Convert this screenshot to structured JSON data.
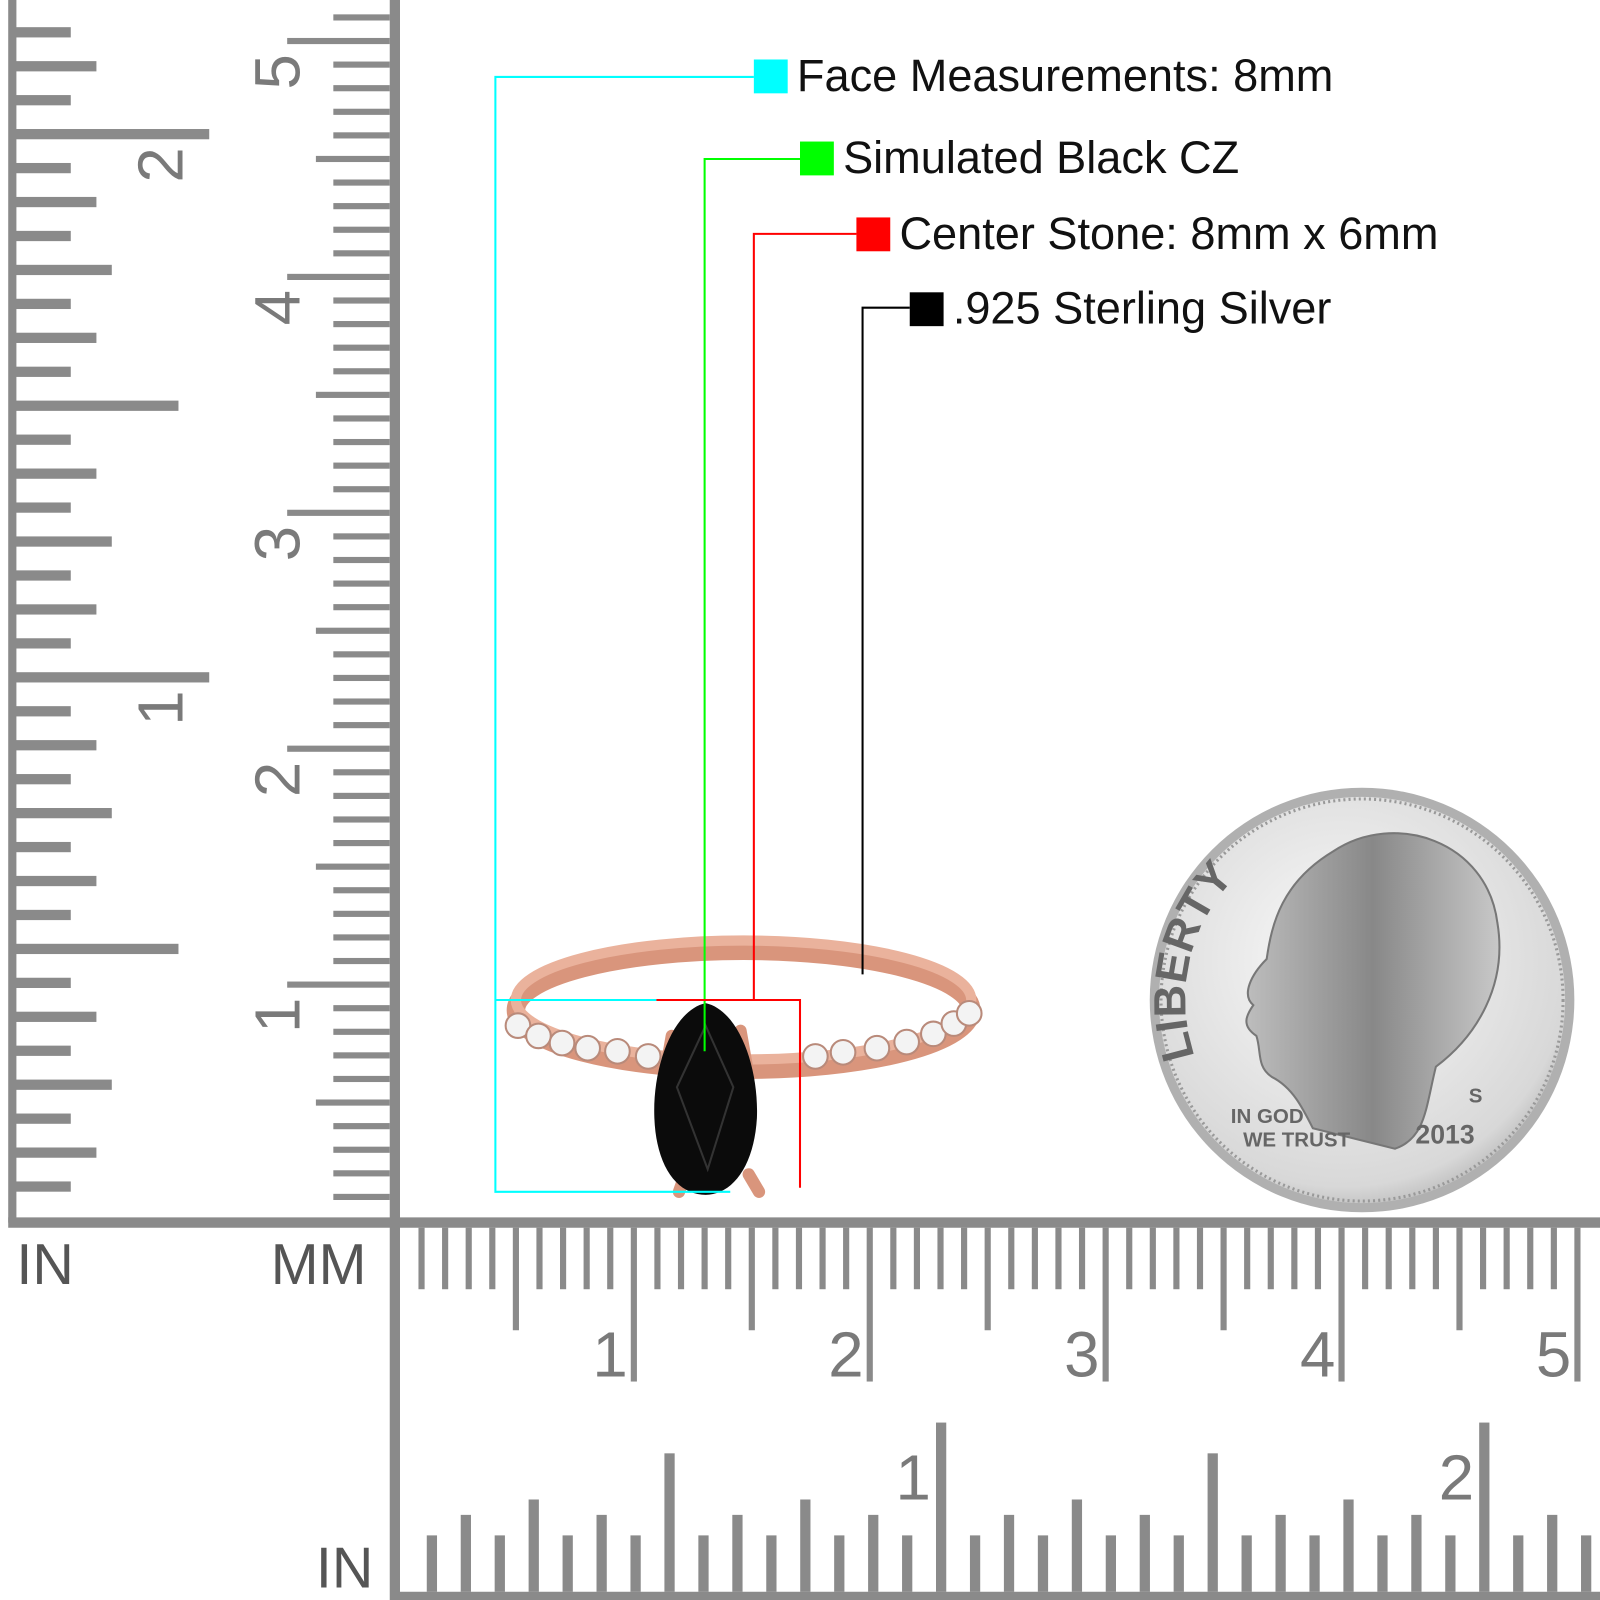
{
  "legend": [
    {
      "label": "Face Measurements: 8mm",
      "color": "#00ffff"
    },
    {
      "label": "Simulated Black CZ",
      "color": "#00ff00"
    },
    {
      "label": "Center Stone: 8mm x 6mm",
      "color": "#ff0000"
    },
    {
      "label": ".925 Sterling Silver",
      "color": "#000000"
    }
  ],
  "rulers": {
    "vertical": {
      "inch_label": "IN",
      "mm_label": "MM",
      "inch_numbers": [
        "1",
        "2"
      ],
      "mm_numbers": [
        "1",
        "2",
        "3",
        "4",
        "5"
      ]
    },
    "horizontal": {
      "mm_numbers": [
        "1",
        "2",
        "3",
        "4",
        "5"
      ],
      "inch_label": "IN",
      "inch_numbers": [
        "1",
        "2"
      ]
    }
  },
  "coin": {
    "top_text": "LIBERTY",
    "motto": [
      "IN GOD",
      "WE TRUST"
    ],
    "year": "2013",
    "mint_mark": "S"
  }
}
